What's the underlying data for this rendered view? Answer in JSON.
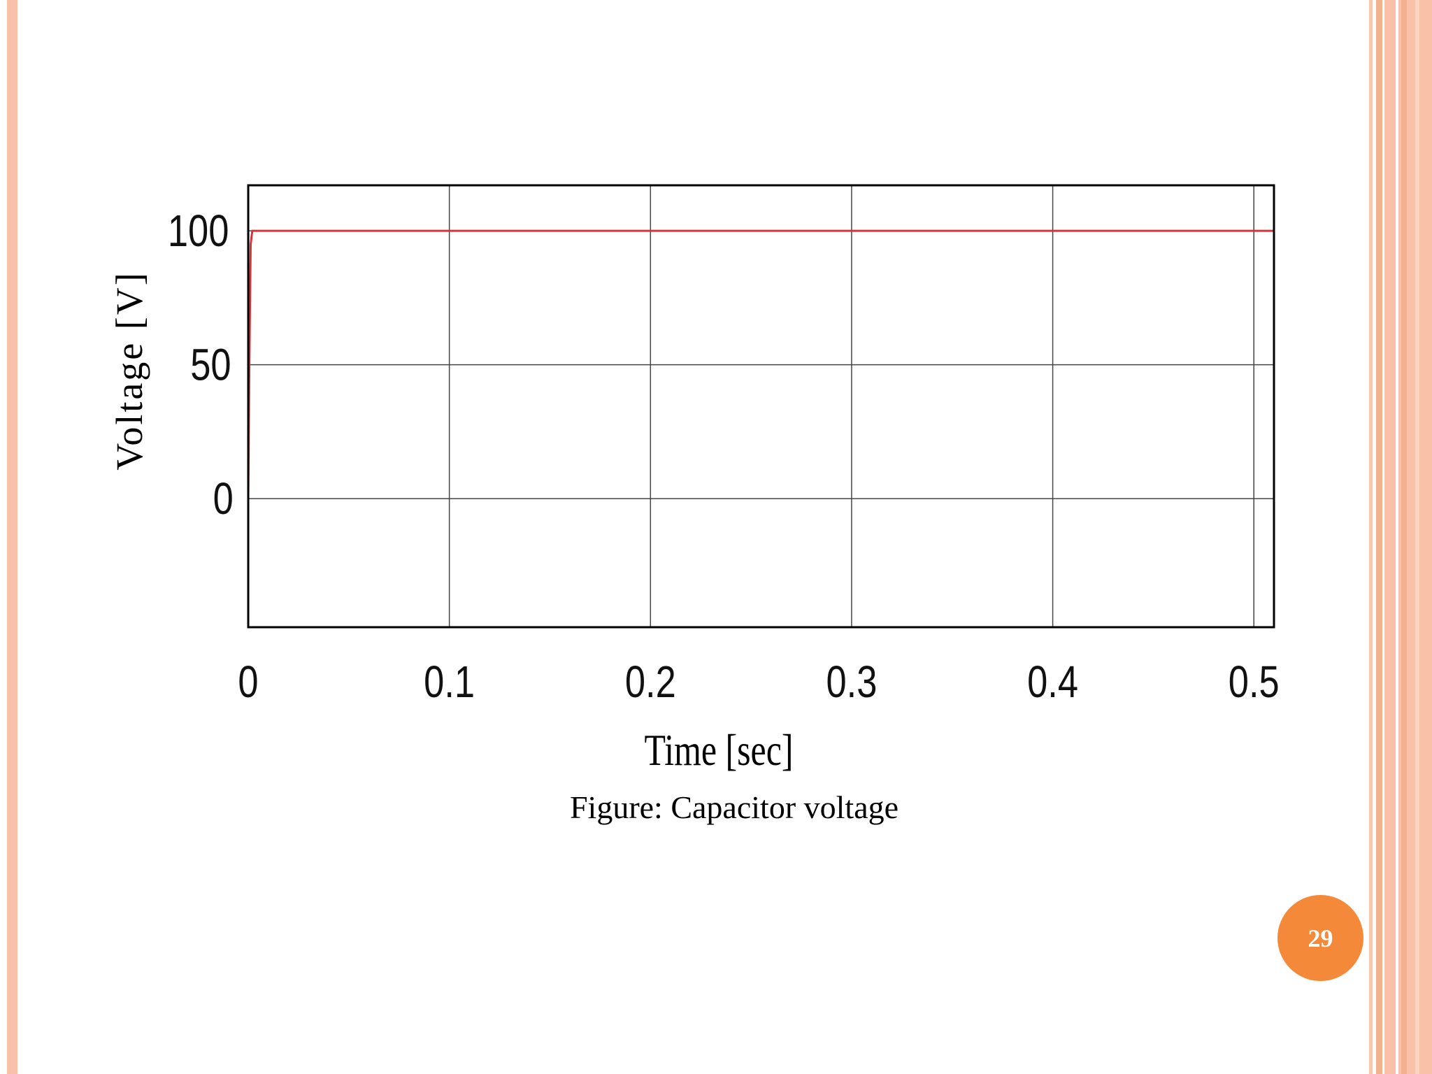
{
  "slide": {
    "caption": "Figure: Capacitor voltage",
    "page_number": "29",
    "accent_color": "#f5893a",
    "border_color": "#f8c1a8"
  },
  "chart_data": {
    "type": "line",
    "xlabel": "Time [sec]",
    "ylabel": "Voltage [V]",
    "xlim": [
      0,
      0.51
    ],
    "ylim": [
      -48,
      117
    ],
    "xticks": [
      0,
      0.1,
      0.2,
      0.3,
      0.4,
      0.5
    ],
    "xtick_labels": [
      "0",
      "0.1",
      "0.2",
      "0.3",
      "0.4",
      "0.5"
    ],
    "yticks": [
      0,
      50,
      100
    ],
    "ytick_labels": [
      "0",
      "50",
      "100"
    ],
    "grid": true,
    "series": [
      {
        "color": "#d9333a",
        "x": [
          0,
          0.0005,
          0.0012,
          0.002,
          0.003,
          0.05,
          0.1,
          0.15,
          0.2,
          0.25,
          0.3,
          0.35,
          0.4,
          0.45,
          0.5,
          0.51
        ],
        "y": [
          0,
          45,
          95,
          100,
          100,
          100,
          100,
          100,
          100,
          100,
          100,
          100,
          100,
          100,
          100,
          100
        ]
      }
    ]
  }
}
